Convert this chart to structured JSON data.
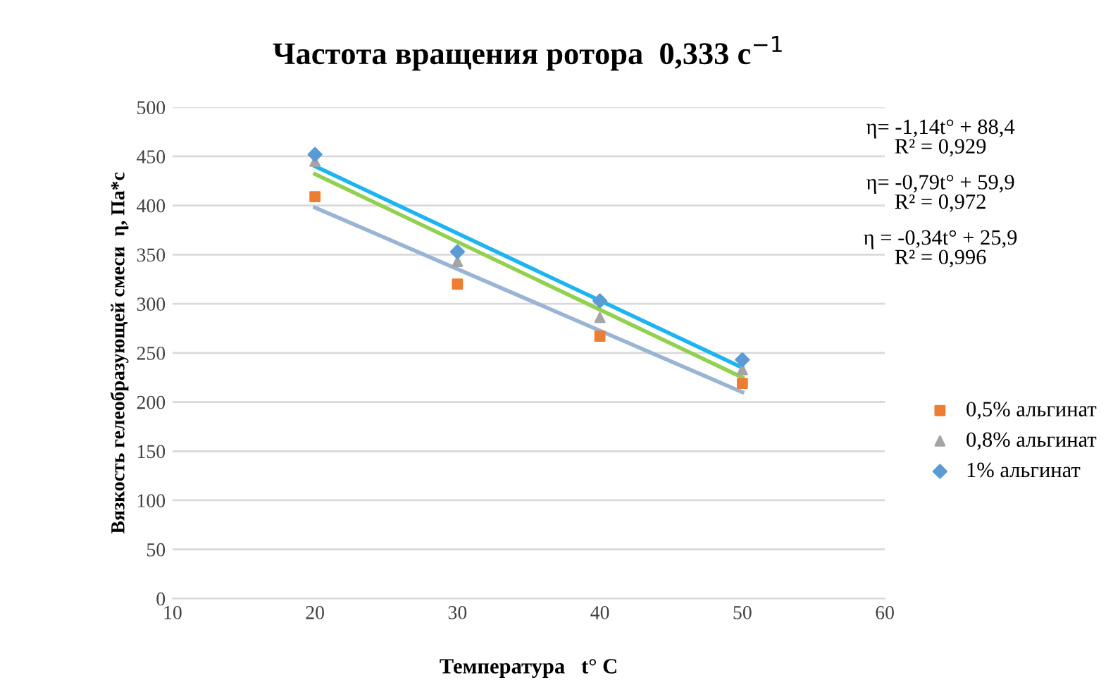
{
  "chart_data": {
    "type": "scatter",
    "title": "Частота вращения ротора  0,333 с$^{−1}$",
    "xlabel": "Температура   t° C",
    "ylabel": "Вязкость гелеобразующей смеси  η, Па*с",
    "xlim": [
      10,
      60
    ],
    "xticks": [
      10,
      20,
      30,
      40,
      50,
      60
    ],
    "ylim": [
      0,
      500
    ],
    "yticks": [
      0,
      50,
      100,
      150,
      200,
      250,
      300,
      350,
      400,
      450,
      500
    ],
    "grid": "y",
    "legend": "right",
    "series": [
      {
        "name": "0,5% альгинат",
        "color": "#ed7d31",
        "marker": "square",
        "x": [
          20,
          30,
          40,
          50
        ],
        "values": [
          409,
          320,
          267,
          219
        ]
      },
      {
        "name": "0,8% альгинат",
        "color": "#a5a5a5",
        "marker": "triangle",
        "x": [
          20,
          30,
          40,
          50
        ],
        "values": [
          445,
          343,
          286,
          233
        ]
      },
      {
        "name": "1% альгинат",
        "color": "#5b9bd5",
        "marker": "diamond",
        "x": [
          20,
          30,
          40,
          50
        ],
        "values": [
          452,
          353,
          303,
          243
        ]
      },
      {
        "type": "line",
        "color": "#9ab5d3",
        "marker": "none",
        "x": [
          20,
          50
        ],
        "values": [
          398,
          210
        ]
      },
      {
        "type": "line",
        "color": "#92d050",
        "marker": "none",
        "x": [
          20,
          50
        ],
        "values": [
          432,
          225
        ]
      },
      {
        "type": "line",
        "color": "#1eb4f0",
        "marker": "none",
        "x": [
          20,
          50
        ],
        "values": [
          440,
          235
        ]
      }
    ],
    "annotations": [
      "η= -1,14t° + 88,4\nR² = 0,929",
      "η= -0,79t° + 59,9\nR² = 0,972",
      "η = -0,34t° + 25,9\nR² = 0,996"
    ]
  }
}
